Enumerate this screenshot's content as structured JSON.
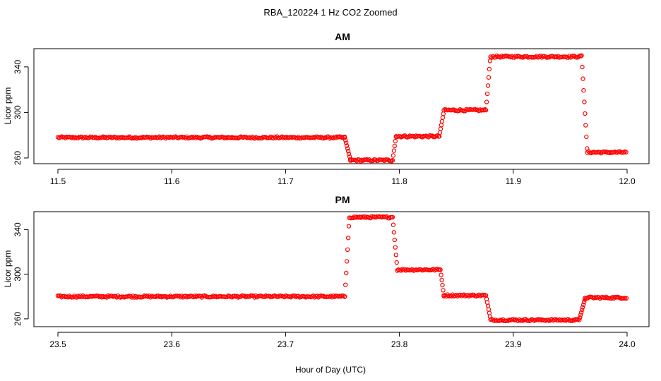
{
  "figure_title": "RBA_120224  1 Hz CO2 Zoomed",
  "x_axis_title": "Hour of Day (UTC)",
  "colors": {
    "points": "#ff0000",
    "axis": "#000000"
  },
  "chart_data": [
    {
      "type": "scatter",
      "title": "AM",
      "ylabel": "Licor ppm",
      "xlim": [
        11.5,
        12.0
      ],
      "ylim": [
        255,
        356
      ],
      "x_ticks": [
        11.5,
        11.6,
        11.7,
        11.8,
        11.9,
        12.0
      ],
      "x_tick_labels": [
        "11.5",
        "11.6",
        "11.7",
        "11.8",
        "11.9",
        "12.0"
      ],
      "y_ticks": [
        260,
        300,
        340
      ],
      "y_tick_labels": [
        "260",
        "300",
        "340"
      ],
      "marker": "open-circle",
      "segments": [
        {
          "x_start": 11.5,
          "x_end": 11.752,
          "y": 278
        },
        {
          "x_start": 11.752,
          "x_end": 11.757,
          "y_from": 278,
          "y_to": 258
        },
        {
          "x_start": 11.757,
          "x_end": 11.794,
          "y": 258
        },
        {
          "x_start": 11.794,
          "x_end": 11.797,
          "y_from": 258,
          "y_to": 279
        },
        {
          "x_start": 11.797,
          "x_end": 11.835,
          "y": 279
        },
        {
          "x_start": 11.835,
          "x_end": 11.839,
          "y_from": 279,
          "y_to": 301
        },
        {
          "x_start": 11.839,
          "x_end": 11.876,
          "y": 302
        },
        {
          "x_start": 11.876,
          "x_end": 11.88,
          "y_from": 302,
          "y_to": 350
        },
        {
          "x_start": 11.88,
          "x_end": 11.96,
          "y": 349
        },
        {
          "x_start": 11.96,
          "x_end": 11.965,
          "y_from": 350,
          "y_to": 265
        },
        {
          "x_start": 11.965,
          "x_end": 12.0,
          "y": 265
        }
      ]
    },
    {
      "type": "scatter",
      "title": "PM",
      "ylabel": "Licor ppm",
      "xlim": [
        23.5,
        24.0
      ],
      "ylim": [
        253,
        356
      ],
      "x_ticks": [
        23.5,
        23.6,
        23.7,
        23.8,
        23.9,
        24.0
      ],
      "x_tick_labels": [
        "23.5",
        "23.6",
        "23.7",
        "23.8",
        "23.9",
        "24.0"
      ],
      "y_ticks": [
        260,
        300,
        340
      ],
      "y_tick_labels": [
        "260",
        "300",
        "340"
      ],
      "marker": "open-circle",
      "segments": [
        {
          "x_start": 23.5,
          "x_end": 23.752,
          "y": 280
        },
        {
          "x_start": 23.752,
          "x_end": 23.756,
          "y_from": 280,
          "y_to": 350
        },
        {
          "x_start": 23.756,
          "x_end": 23.794,
          "y": 351
        },
        {
          "x_start": 23.794,
          "x_end": 23.798,
          "y_from": 351,
          "y_to": 306
        },
        {
          "x_start": 23.798,
          "x_end": 23.836,
          "y": 304
        },
        {
          "x_start": 23.836,
          "x_end": 23.839,
          "y_from": 304,
          "y_to": 281
        },
        {
          "x_start": 23.839,
          "x_end": 23.876,
          "y": 281
        },
        {
          "x_start": 23.876,
          "x_end": 23.88,
          "y_from": 281,
          "y_to": 260
        },
        {
          "x_start": 23.88,
          "x_end": 23.958,
          "y": 259
        },
        {
          "x_start": 23.958,
          "x_end": 23.963,
          "y_from": 259,
          "y_to": 278
        },
        {
          "x_start": 23.963,
          "x_end": 24.0,
          "y": 279
        }
      ]
    }
  ]
}
